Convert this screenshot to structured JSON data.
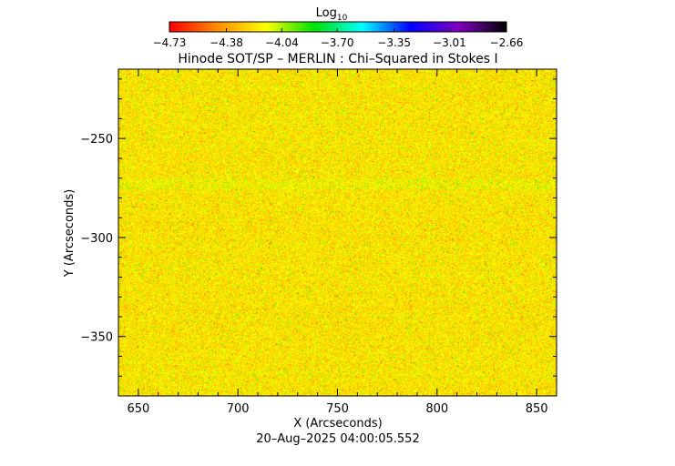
{
  "chart_data": {
    "type": "heatmap",
    "title": "Hinode SOT/SP – MERLIN : Chi–Squared in Stokes I",
    "xlabel": "X (Arcseconds)",
    "ylabel": "Y (Arcseconds)",
    "timestamp": "20–Aug–2025 04:00:05.552",
    "xlim": [
      640,
      860
    ],
    "ylim": [
      -380,
      -215
    ],
    "x_ticks": [
      {
        "value": 650,
        "label": "650"
      },
      {
        "value": 700,
        "label": "700"
      },
      {
        "value": 750,
        "label": "750"
      },
      {
        "value": 800,
        "label": "800"
      },
      {
        "value": 850,
        "label": "850"
      }
    ],
    "y_ticks": [
      {
        "value": -250,
        "label": "−250"
      },
      {
        "value": -300,
        "label": "−300"
      },
      {
        "value": -350,
        "label": "−350"
      }
    ],
    "colorbar": {
      "label": "Log",
      "label_subscript": "10",
      "range": [
        -4.73,
        -2.66
      ],
      "ticks": [
        {
          "value": -4.73,
          "label": "−4.73"
        },
        {
          "value": -4.38,
          "label": "−4.38"
        },
        {
          "value": -4.04,
          "label": "−4.04"
        },
        {
          "value": -3.7,
          "label": "−3.70"
        },
        {
          "value": -3.35,
          "label": "−3.35"
        },
        {
          "value": -3.01,
          "label": "−3.01"
        },
        {
          "value": -2.66,
          "label": "−2.66"
        }
      ],
      "colormap": [
        "#ff0000",
        "#ff8c00",
        "#ffff00",
        "#00e000",
        "#00ffff",
        "#0000ff",
        "#8000c0",
        "#000000"
      ]
    },
    "field_distribution": {
      "typical_range": [
        -4.45,
        -3.95
      ],
      "dominant_colors": [
        "#c8f03c",
        "#8cdc3c",
        "#f0e63c",
        "#f08232"
      ]
    }
  }
}
